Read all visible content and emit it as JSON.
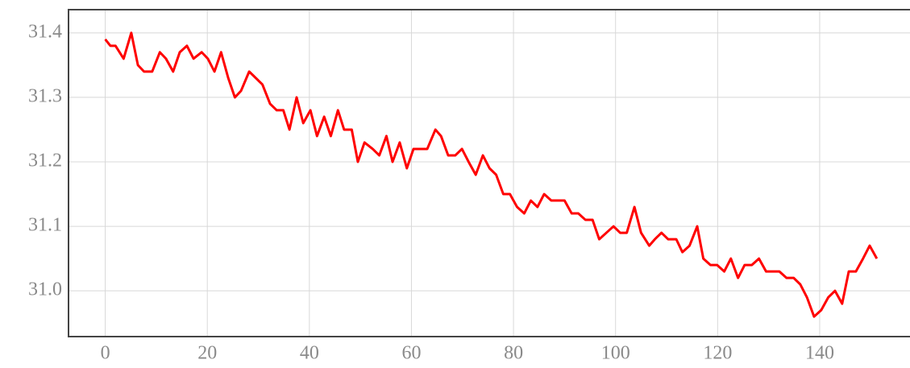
{
  "chart_data": {
    "type": "line",
    "x": [
      0,
      1,
      2,
      3.6,
      5.1,
      6.4,
      7.6,
      9.2,
      10.7,
      11.9,
      13.3,
      14.6,
      16,
      17.3,
      18.9,
      20.1,
      21.4,
      22.7,
      24.1,
      25.4,
      26.6,
      28.2,
      29.5,
      30.8,
      32.3,
      33.6,
      34.9,
      36.1,
      37.5,
      38.8,
      40.2,
      41.5,
      42.9,
      44.2,
      45.6,
      46.8,
      48.3,
      49.5,
      50.8,
      52.4,
      53.7,
      55.1,
      56.3,
      57.7,
      59.1,
      60.4,
      61.8,
      63.1,
      64.7,
      65.8,
      67.2,
      68.6,
      69.9,
      71.2,
      72.6,
      74,
      75.3,
      76.6,
      78,
      79.3,
      80.7,
      82.1,
      83.4,
      84.7,
      86,
      87.4,
      88.7,
      90,
      91.4,
      92.7,
      94.1,
      95.5,
      96.8,
      98.2,
      99.6,
      100.9,
      102.2,
      103.7,
      105,
      106.6,
      107.7,
      109,
      110.3,
      111.9,
      113.1,
      114.5,
      116,
      117.2,
      118.6,
      119.9,
      121.3,
      122.6,
      124,
      125.3,
      126.7,
      128.1,
      129.5,
      130.8,
      132.1,
      133.5,
      134.9,
      136.2,
      137.5,
      138.9,
      140.3,
      141.7,
      143,
      144.4,
      145.7,
      147.1,
      148.5,
      149.8,
      151.2
    ],
    "values": [
      31.39,
      31.38,
      31.38,
      31.36,
      31.4,
      31.35,
      31.34,
      31.34,
      31.37,
      31.36,
      31.34,
      31.37,
      31.38,
      31.36,
      31.37,
      31.36,
      31.34,
      31.37,
      31.33,
      31.3,
      31.31,
      31.34,
      31.33,
      31.32,
      31.29,
      31.28,
      31.28,
      31.25,
      31.3,
      31.26,
      31.28,
      31.24,
      31.27,
      31.24,
      31.28,
      31.25,
      31.25,
      31.2,
      31.23,
      31.22,
      31.21,
      31.24,
      31.2,
      31.23,
      31.19,
      31.22,
      31.22,
      31.22,
      31.25,
      31.24,
      31.21,
      31.21,
      31.22,
      31.2,
      31.18,
      31.21,
      31.19,
      31.18,
      31.15,
      31.15,
      31.13,
      31.12,
      31.14,
      31.13,
      31.15,
      31.14,
      31.14,
      31.14,
      31.12,
      31.12,
      31.11,
      31.11,
      31.08,
      31.09,
      31.1,
      31.09,
      31.09,
      31.13,
      31.09,
      31.07,
      31.08,
      31.09,
      31.08,
      31.08,
      31.06,
      31.07,
      31.1,
      31.05,
      31.04,
      31.04,
      31.03,
      31.05,
      31.02,
      31.04,
      31.04,
      31.05,
      31.03,
      31.03,
      31.03,
      31.02,
      31.02,
      31.01,
      30.99,
      30.96,
      30.97,
      30.99,
      31.0,
      30.98,
      31.03,
      31.03,
      31.05,
      31.07,
      31.05
    ],
    "color": "#ff0000",
    "xlim": [
      -7.2,
      157.7
    ],
    "xticks": [
      0,
      20,
      40,
      60,
      80,
      100,
      120,
      140
    ],
    "ylim": [
      30.929,
      31.436
    ],
    "yticks": [
      {
        "value": 31,
        "label": "31.0"
      },
      31.1,
      31.2,
      31.3,
      31.4
    ],
    "grid": true
  }
}
